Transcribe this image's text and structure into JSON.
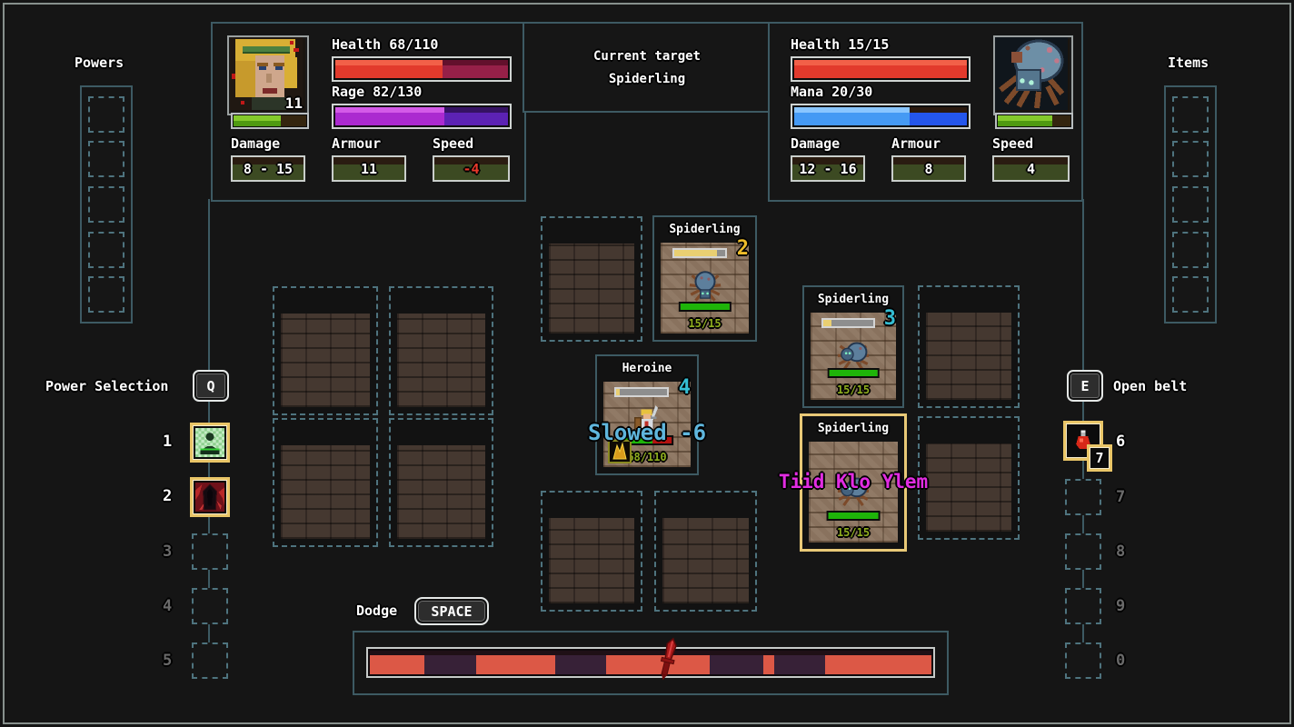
{
  "colors": {
    "panel_border": "#3d5a63",
    "dashed_border": "#4e737e",
    "gold_highlight": "#e9c567",
    "health_fill": "#e23a2c",
    "health_bg": "#962048",
    "rage_fill": "#ab2ad0",
    "rage_bg": "#5c22b4",
    "mana_fill": "#459af4",
    "mana_bg": "#2456ec",
    "xp_fill": "#55a315",
    "hp_green": "#1eb409",
    "hp_red": "#b41210",
    "init_fill": "#e9cf72",
    "timeline_red": "#dc5846",
    "timeline_dark": "#372137",
    "status_blue": "#5fb6dd",
    "status_magenta": "#e22ce2",
    "turn_gold": "#eebc2a",
    "turn_teal": "#35bed3",
    "stat_box_green": "#3c4a22",
    "speed_negative": "#e8392a"
  },
  "player_panel": {
    "level": "11",
    "health_text": "Health 68/110",
    "health_pct": 62,
    "rage_text": "Rage 82/130",
    "rage_pct": 63,
    "xp_pct": 65,
    "damage_label": "Damage",
    "damage_value": "8 - 15",
    "armour_label": "Armour",
    "armour_value": "11",
    "speed_label": "Speed",
    "speed_value": "-4"
  },
  "target_panel": {
    "line1": "Current target",
    "line2": "Spiderling"
  },
  "enemy_panel": {
    "health_text": "Health 15/15",
    "health_pct": 100,
    "mana_text": "Mana 20/30",
    "mana_pct": 67,
    "xp_pct": 75,
    "damage_label": "Damage",
    "damage_value": "12 - 16",
    "armour_label": "Armour",
    "armour_value": "8",
    "speed_label": "Speed",
    "speed_value": "4"
  },
  "powers": {
    "label": "Powers"
  },
  "items": {
    "label": "Items"
  },
  "power_selection": {
    "label": "Power Selection",
    "key": "Q",
    "slots": [
      {
        "num": "1",
        "filled": true,
        "icon": "meditation-power-icon"
      },
      {
        "num": "2",
        "filled": true,
        "icon": "dark-cloak-power-icon"
      },
      {
        "num": "3",
        "filled": false
      },
      {
        "num": "4",
        "filled": false
      },
      {
        "num": "5",
        "filled": false
      }
    ]
  },
  "belt": {
    "label": "Open belt",
    "key": "E",
    "slots": [
      {
        "num": "6",
        "filled": true,
        "icon": "red-potion-icon",
        "count": "7"
      },
      {
        "num": "7",
        "filled": false
      },
      {
        "num": "8",
        "filled": false
      },
      {
        "num": "9",
        "filled": false
      },
      {
        "num": "0",
        "filled": false
      }
    ]
  },
  "battlefield": {
    "spiderling_top": {
      "name": "Spiderling",
      "turn": "2",
      "init_pct": 85,
      "hp_text": "15/15",
      "hp_pct": 100
    },
    "spiderling_right": {
      "name": "Spiderling",
      "turn": "3",
      "init_pct": 17,
      "hp_text": "15/15",
      "hp_pct": 100
    },
    "heroine": {
      "name": "Heroine",
      "turn": "4",
      "init_pct": 6,
      "status": "Slowed -6",
      "hp_text": "68/110",
      "hp_pct": 62
    },
    "spiderling_target": {
      "name": "Spiderling",
      "status": "Tiid Klo Ylem",
      "hp_text": "15/15",
      "hp_pct": 100
    }
  },
  "dodge": {
    "label": "Dodge",
    "key": "SPACE"
  },
  "timeline": {
    "marker_pct": 53,
    "segments": [
      {
        "color": "red",
        "width_pct": 9.7
      },
      {
        "color": "dark",
        "width_pct": 9.3
      },
      {
        "color": "red",
        "width_pct": 14
      },
      {
        "color": "dark",
        "width_pct": 9
      },
      {
        "color": "red",
        "width_pct": 18.5
      },
      {
        "color": "dark",
        "width_pct": 9.5
      },
      {
        "color": "red",
        "width_pct": 2
      },
      {
        "color": "dark",
        "width_pct": 9
      },
      {
        "color": "red",
        "width_pct": 19
      }
    ]
  }
}
